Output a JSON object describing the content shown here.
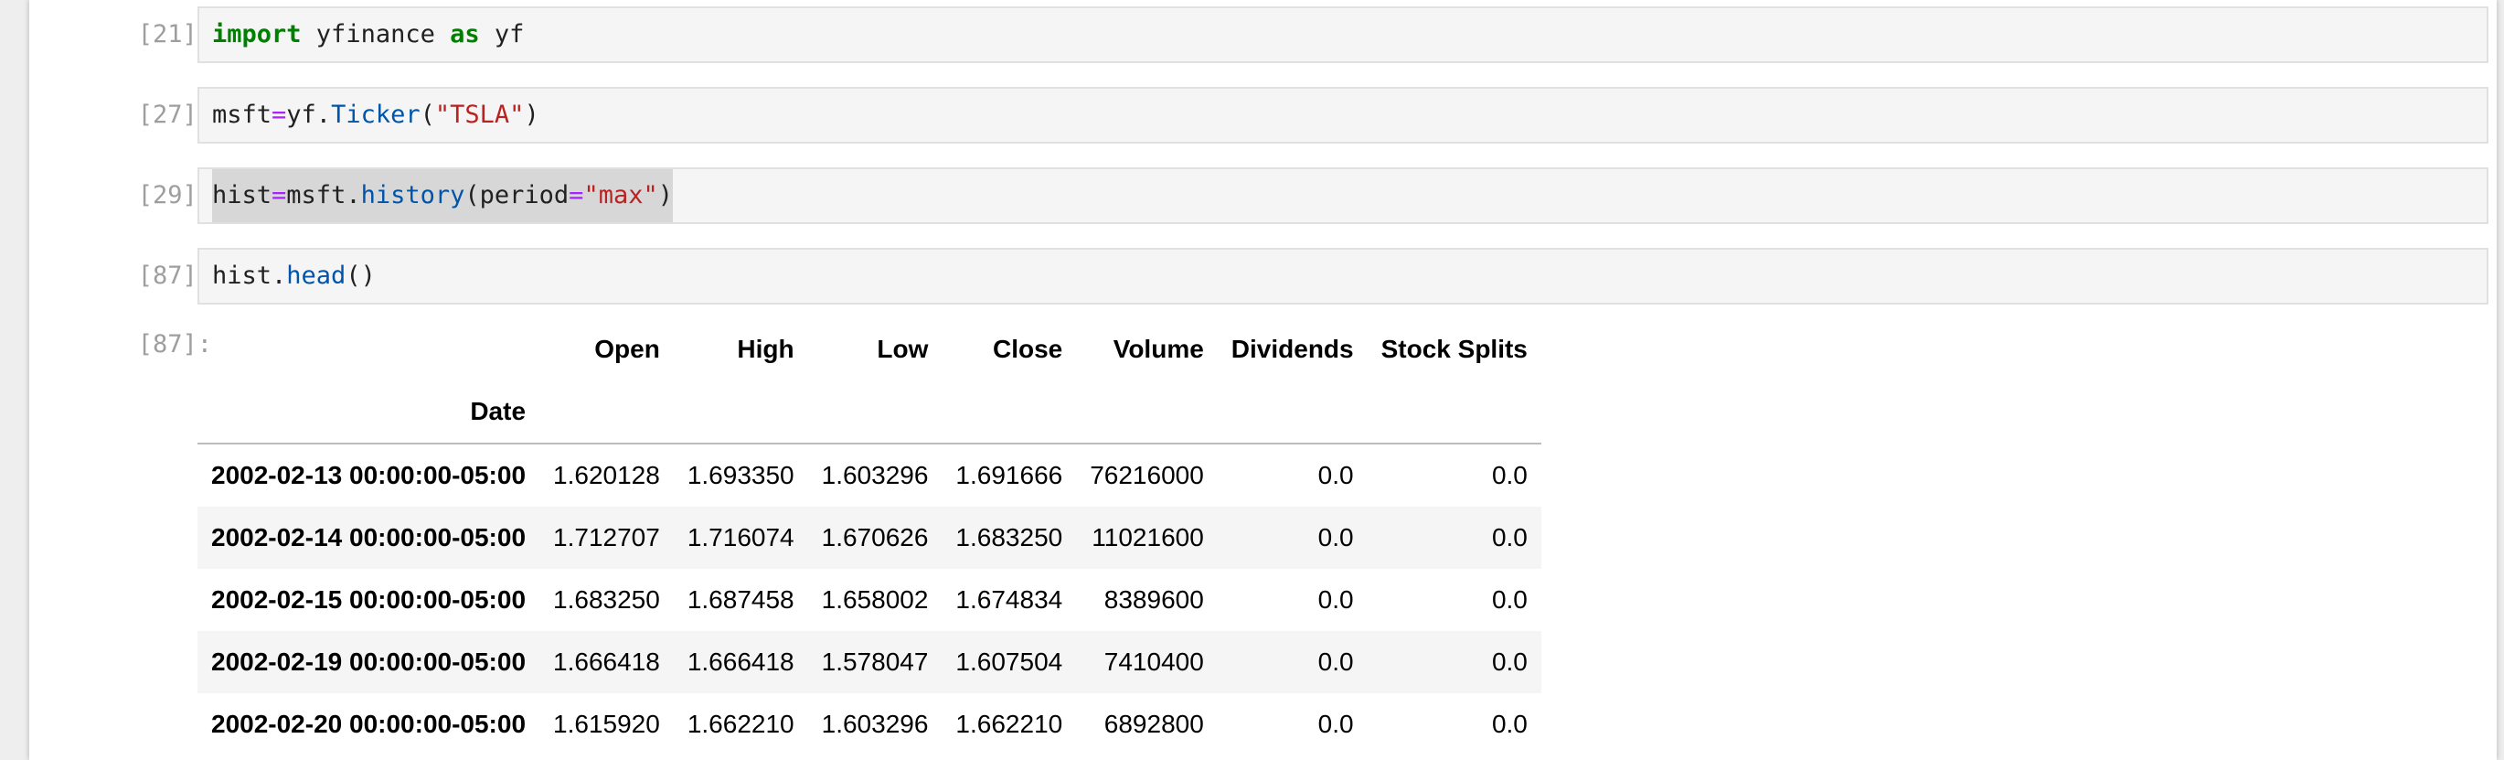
{
  "cells": [
    {
      "prompt": "[21]:",
      "code": [
        {
          "text": "import",
          "cls": "kw"
        },
        {
          "text": " yfinance ",
          "cls": ""
        },
        {
          "text": "as",
          "cls": "kw"
        },
        {
          "text": " yf",
          "cls": ""
        }
      ]
    },
    {
      "prompt": "[27]:",
      "code": [
        {
          "text": "msft",
          "cls": ""
        },
        {
          "text": "=",
          "cls": "op"
        },
        {
          "text": "yf.",
          "cls": ""
        },
        {
          "text": "Ticker",
          "cls": "fn"
        },
        {
          "text": "(",
          "cls": ""
        },
        {
          "text": "\"TSLA\"",
          "cls": "str"
        },
        {
          "text": ")",
          "cls": ""
        }
      ]
    },
    {
      "prompt": "[29]:",
      "code": [
        {
          "text": "hist",
          "cls": ""
        },
        {
          "text": "=",
          "cls": "op"
        },
        {
          "text": "msft.",
          "cls": ""
        },
        {
          "text": "history",
          "cls": "fn"
        },
        {
          "text": "(period",
          "cls": ""
        },
        {
          "text": "=",
          "cls": "op"
        },
        {
          "text": "\"max\"",
          "cls": "str"
        },
        {
          "text": ")",
          "cls": ""
        }
      ]
    },
    {
      "prompt": "[87]:",
      "code": [
        {
          "text": "hist.",
          "cls": ""
        },
        {
          "text": "head",
          "cls": "fn"
        },
        {
          "text": "()",
          "cls": ""
        }
      ]
    }
  ],
  "output": {
    "prompt": "[87]:",
    "columns": [
      "Open",
      "High",
      "Low",
      "Close",
      "Volume",
      "Dividends",
      "Stock Splits"
    ],
    "index_name": "Date",
    "rows": [
      {
        "index": "2002-02-13 00:00:00-05:00",
        "values": [
          "1.620128",
          "1.693350",
          "1.603296",
          "1.691666",
          "76216000",
          "0.0",
          "0.0"
        ]
      },
      {
        "index": "2002-02-14 00:00:00-05:00",
        "values": [
          "1.712707",
          "1.716074",
          "1.670626",
          "1.683250",
          "11021600",
          "0.0",
          "0.0"
        ]
      },
      {
        "index": "2002-02-15 00:00:00-05:00",
        "values": [
          "1.683250",
          "1.687458",
          "1.658002",
          "1.674834",
          "8389600",
          "0.0",
          "0.0"
        ]
      },
      {
        "index": "2002-02-19 00:00:00-05:00",
        "values": [
          "1.666418",
          "1.666418",
          "1.578047",
          "1.607504",
          "7410400",
          "0.0",
          "0.0"
        ]
      },
      {
        "index": "2002-02-20 00:00:00-05:00",
        "values": [
          "1.615920",
          "1.662210",
          "1.603296",
          "1.662210",
          "6892800",
          "0.0",
          "0.0"
        ]
      }
    ]
  }
}
